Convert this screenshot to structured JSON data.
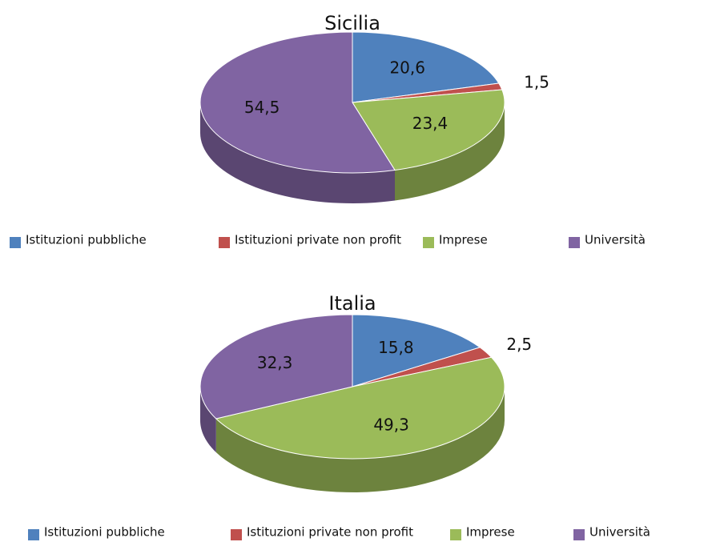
{
  "chart_data": [
    {
      "type": "pie",
      "title": "Sicilia",
      "categories": [
        "Istituzioni pubbliche",
        "Istituzioni private non profit",
        "Imprese",
        "Università"
      ],
      "values": [
        20.6,
        1.5,
        23.4,
        54.5
      ],
      "value_labels": [
        "20,6",
        "1,5",
        "23,4",
        "54,5"
      ],
      "colors": [
        "#4f81bd",
        "#c0504d",
        "#9bbb59",
        "#8064a2"
      ]
    },
    {
      "type": "pie",
      "title": "Italia",
      "categories": [
        "Istituzioni pubbliche",
        "Istituzioni private non profit",
        "Imprese",
        "Università"
      ],
      "values": [
        15.8,
        2.5,
        49.3,
        32.3
      ],
      "value_labels": [
        "15,8",
        "2,5",
        "49,3",
        "32,3"
      ],
      "colors": [
        "#4f81bd",
        "#c0504d",
        "#9bbb59",
        "#8064a2"
      ]
    }
  ]
}
